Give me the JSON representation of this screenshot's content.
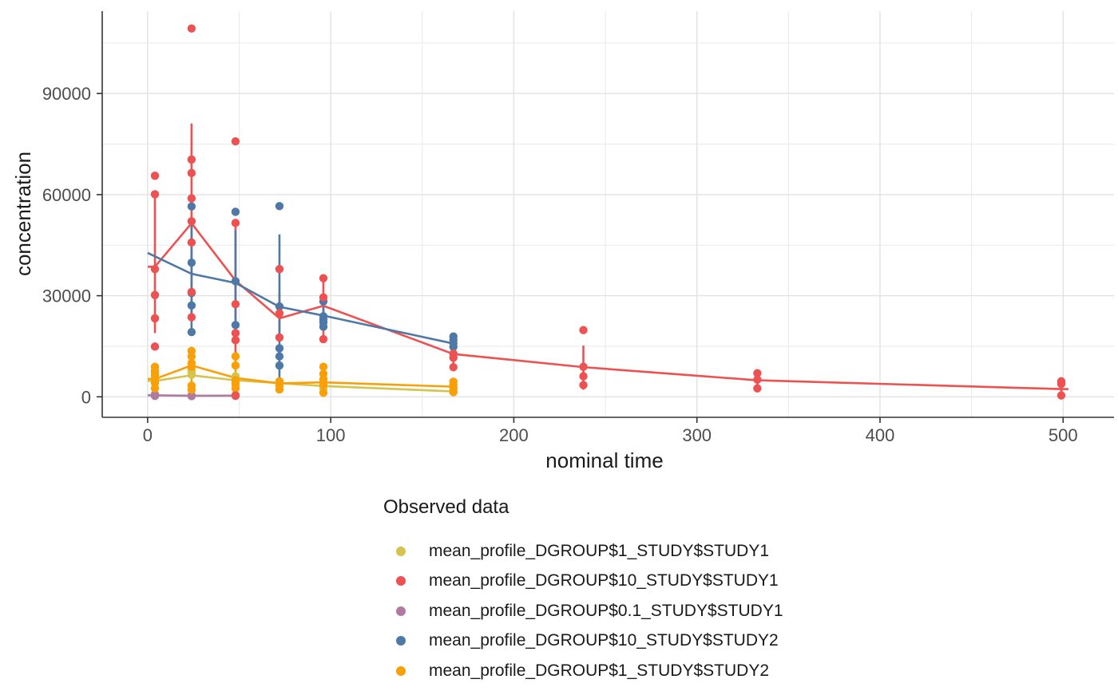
{
  "chart_data": {
    "type": "scatter",
    "title": "",
    "xlabel": "nominal time",
    "ylabel": "concentration",
    "legend_title": "Observed data",
    "legend_position": "bottom-left",
    "grid": true,
    "background": "#FFFFFF",
    "axis_color": "#333333",
    "grid_major_color": "#E2E2E2",
    "grid_minor_color": "#EBEBEB",
    "tick_label_color": "#4D4D4D",
    "title_color": "#1A1A1A",
    "xlim": [
      -24.8,
      527.8
    ],
    "ylim": [
      -6085,
      114440
    ],
    "x_ticks": [
      0,
      100,
      200,
      300,
      400,
      500
    ],
    "x_minor_ticks": [
      50,
      150,
      250,
      350,
      450
    ],
    "y_ticks": [
      0,
      30000,
      60000,
      90000
    ],
    "y_minor_ticks": [
      15000,
      45000,
      75000,
      105000
    ],
    "series": [
      {
        "name": "mean_profile_DGROUP$1_STUDY$STUDY1",
        "color": "#D4C34C",
        "caps": {
          "start": true,
          "end": false
        },
        "points": [
          [
            4,
            7200
          ],
          [
            4,
            6400
          ],
          [
            4,
            5500
          ],
          [
            4,
            4600
          ],
          [
            24,
            8100
          ],
          [
            24,
            7300
          ],
          [
            24,
            6500
          ],
          [
            48,
            6100
          ],
          [
            48,
            5200
          ],
          [
            48,
            4300
          ],
          [
            96,
            3100
          ],
          [
            96,
            2400
          ],
          [
            167,
            2300
          ],
          [
            167,
            1500
          ]
        ],
        "line": [
          [
            4,
            4700
          ],
          [
            24,
            6400
          ],
          [
            48,
            4900
          ],
          [
            96,
            3200
          ],
          [
            167,
            1600
          ]
        ],
        "errorbars": []
      },
      {
        "name": "mean_profile_DGROUP$10_STUDY$STUDY1",
        "color": "#ED5151",
        "caps": {
          "start": true,
          "end": true
        },
        "points": [
          [
            4,
            65600
          ],
          [
            4,
            60100
          ],
          [
            4,
            37900
          ],
          [
            4,
            30200
          ],
          [
            4,
            23300
          ],
          [
            4,
            14900
          ],
          [
            24,
            109300
          ],
          [
            24,
            70400
          ],
          [
            24,
            66400
          ],
          [
            24,
            58900
          ],
          [
            24,
            52100
          ],
          [
            24,
            45800
          ],
          [
            24,
            31100
          ],
          [
            24,
            23600
          ],
          [
            48,
            75800
          ],
          [
            48,
            51600
          ],
          [
            48,
            27500
          ],
          [
            48,
            18900
          ],
          [
            48,
            16800
          ],
          [
            48,
            400
          ],
          [
            72,
            37900
          ],
          [
            72,
            24800
          ],
          [
            72,
            17600
          ],
          [
            96,
            35200
          ],
          [
            96,
            29500
          ],
          [
            96,
            17100
          ],
          [
            167,
            12800
          ],
          [
            167,
            11600
          ],
          [
            167,
            8800
          ],
          [
            238,
            19800
          ],
          [
            238,
            8900
          ],
          [
            238,
            6100
          ],
          [
            238,
            3500
          ],
          [
            333,
            7000
          ],
          [
            333,
            5100
          ],
          [
            333,
            2500
          ],
          [
            499,
            4600
          ],
          [
            499,
            3800
          ],
          [
            499,
            400
          ]
        ],
        "line": [
          [
            4,
            38600
          ],
          [
            24,
            51500
          ],
          [
            48,
            34500
          ],
          [
            72,
            23300
          ],
          [
            96,
            27000
          ],
          [
            167,
            12700
          ],
          [
            238,
            8800
          ],
          [
            333,
            4900
          ],
          [
            499,
            2300
          ]
        ],
        "errorbars": [
          [
            4,
            18900,
            59800
          ],
          [
            24,
            23500,
            81100
          ],
          [
            48,
            10000,
            51600
          ],
          [
            72,
            17600,
            31000
          ],
          [
            96,
            17100,
            35200
          ],
          [
            167,
            8900,
            14600
          ],
          [
            238,
            2100,
            15200
          ],
          [
            333,
            2500,
            7000
          ],
          [
            499,
            400,
            4600
          ]
        ]
      },
      {
        "name": "mean_profile_DGROUP$0.1_STUDY$STUDY1",
        "color": "#B07AA1",
        "caps": {
          "start": true,
          "end": false
        },
        "points": [
          [
            4,
            700
          ],
          [
            4,
            450
          ],
          [
            4,
            250
          ],
          [
            24,
            400
          ],
          [
            24,
            200
          ],
          [
            48,
            480
          ],
          [
            48,
            260
          ]
        ],
        "line": [
          [
            4,
            450
          ],
          [
            24,
            320
          ],
          [
            48,
            350
          ]
        ],
        "errorbars": []
      },
      {
        "name": "mean_profile_DGROUP$10_STUDY$STUDY2",
        "color": "#4E79A7",
        "caps": {
          "start": false,
          "end": false
        },
        "points": [
          [
            24,
            56500
          ],
          [
            24,
            39800
          ],
          [
            24,
            30800
          ],
          [
            24,
            27100
          ],
          [
            24,
            19200
          ],
          [
            48,
            54900
          ],
          [
            48,
            34300
          ],
          [
            48,
            21300
          ],
          [
            72,
            56600
          ],
          [
            72,
            26800
          ],
          [
            72,
            14400
          ],
          [
            72,
            12000
          ],
          [
            72,
            9300
          ],
          [
            96,
            28300
          ],
          [
            96,
            23900
          ],
          [
            96,
            23000
          ],
          [
            96,
            22100
          ],
          [
            96,
            20800
          ],
          [
            167,
            17900
          ],
          [
            167,
            16900
          ],
          [
            167,
            15900
          ],
          [
            167,
            14800
          ]
        ],
        "line": [
          [
            0,
            42700
          ],
          [
            24,
            36500
          ],
          [
            48,
            33800
          ],
          [
            72,
            26700
          ],
          [
            96,
            24100
          ],
          [
            167,
            15800
          ]
        ],
        "errorbars": [
          [
            24,
            19200,
            52000
          ],
          [
            48,
            21300,
            49400
          ],
          [
            72,
            5500,
            48200
          ],
          [
            96,
            20800,
            28300
          ],
          [
            167,
            14000,
            18500
          ]
        ]
      },
      {
        "name": "mean_profile_DGROUP$1_STUDY$STUDY2",
        "color": "#F9A008",
        "caps": {
          "start": true,
          "end": false
        },
        "points": [
          [
            4,
            8900
          ],
          [
            4,
            7700
          ],
          [
            4,
            6600
          ],
          [
            4,
            5300
          ],
          [
            4,
            4100
          ],
          [
            4,
            2500
          ],
          [
            24,
            13600
          ],
          [
            24,
            12000
          ],
          [
            24,
            10000
          ],
          [
            24,
            8900
          ],
          [
            24,
            3300
          ],
          [
            24,
            2100
          ],
          [
            48,
            12000
          ],
          [
            48,
            9300
          ],
          [
            48,
            4900
          ],
          [
            48,
            3700
          ],
          [
            48,
            2500
          ],
          [
            72,
            4600
          ],
          [
            72,
            3300
          ],
          [
            72,
            2200
          ],
          [
            96,
            8900
          ],
          [
            96,
            6800
          ],
          [
            96,
            5200
          ],
          [
            96,
            3600
          ],
          [
            96,
            1200
          ],
          [
            167,
            4500
          ],
          [
            167,
            3600
          ],
          [
            167,
            2700
          ],
          [
            167,
            1400
          ]
        ],
        "line": [
          [
            4,
            5300
          ],
          [
            24,
            9300
          ],
          [
            48,
            5600
          ],
          [
            72,
            4000
          ],
          [
            96,
            4300
          ],
          [
            167,
            3000
          ]
        ],
        "errorbars": [
          [
            4,
            2600,
            8800
          ],
          [
            24,
            1700,
            14800
          ],
          [
            48,
            2500,
            11000
          ],
          [
            72,
            2200,
            4600
          ],
          [
            96,
            2900,
            8900
          ],
          [
            167,
            1400,
            4500
          ]
        ]
      }
    ]
  }
}
